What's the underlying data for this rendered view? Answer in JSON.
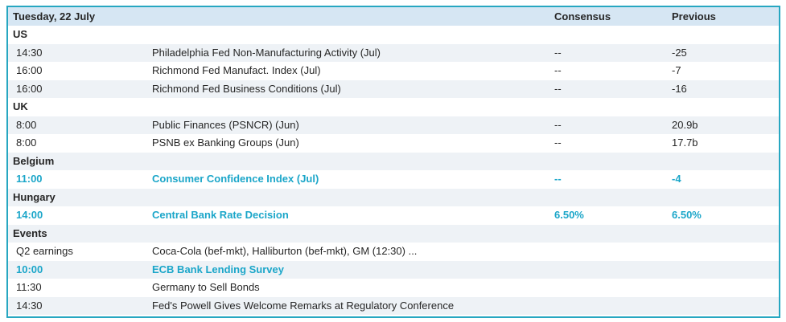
{
  "header": {
    "date": "Tuesday, 22 July",
    "col_consensus": "Consensus",
    "col_previous": "Previous"
  },
  "sections": {
    "us": {
      "name": "US",
      "rows": [
        {
          "time": "14:30",
          "event": "Philadelphia Fed Non-Manufacturing Activity (Jul)",
          "consensus": "--",
          "previous": "-25"
        },
        {
          "time": "16:00",
          "event": "Richmond Fed Manufact. Index (Jul)",
          "consensus": "--",
          "previous": "-7"
        },
        {
          "time": "16:00",
          "event": "Richmond Fed Business Conditions (Jul)",
          "consensus": "--",
          "previous": "-16"
        }
      ]
    },
    "uk": {
      "name": "UK",
      "rows": [
        {
          "time": "8:00",
          "event": "Public Finances (PSNCR) (Jun)",
          "consensus": "--",
          "previous": "20.9b"
        },
        {
          "time": "8:00",
          "event": "PSNB ex Banking Groups (Jun)",
          "consensus": "--",
          "previous": "17.7b"
        }
      ]
    },
    "belgium": {
      "name": "Belgium",
      "rows": [
        {
          "time": "11:00",
          "event": "Consumer Confidence Index (Jul)",
          "consensus": "--",
          "previous": "-4"
        }
      ]
    },
    "hungary": {
      "name": "Hungary",
      "rows": [
        {
          "time": "14:00",
          "event": "Central Bank Rate Decision",
          "consensus": "6.50%",
          "previous": "6.50%"
        }
      ]
    },
    "events": {
      "name": "Events",
      "rows": [
        {
          "time": "Q2 earnings",
          "event": "Coca-Cola (bef-mkt), Halliburton (bef-mkt), GM (12:30) ..."
        },
        {
          "time": "10:00",
          "event": "ECB Bank Lending Survey"
        },
        {
          "time": "11:30",
          "event": "Germany to Sell Bonds"
        },
        {
          "time": "14:30",
          "event": "Fed's Powell Gives Welcome Remarks at Regulatory Conference"
        }
      ]
    }
  },
  "colors": {
    "border": "#27a7c1",
    "header_bg": "#d6e6f3",
    "alt_row_bg": "#eef2f6",
    "highlight_text": "#1ba6c9"
  }
}
